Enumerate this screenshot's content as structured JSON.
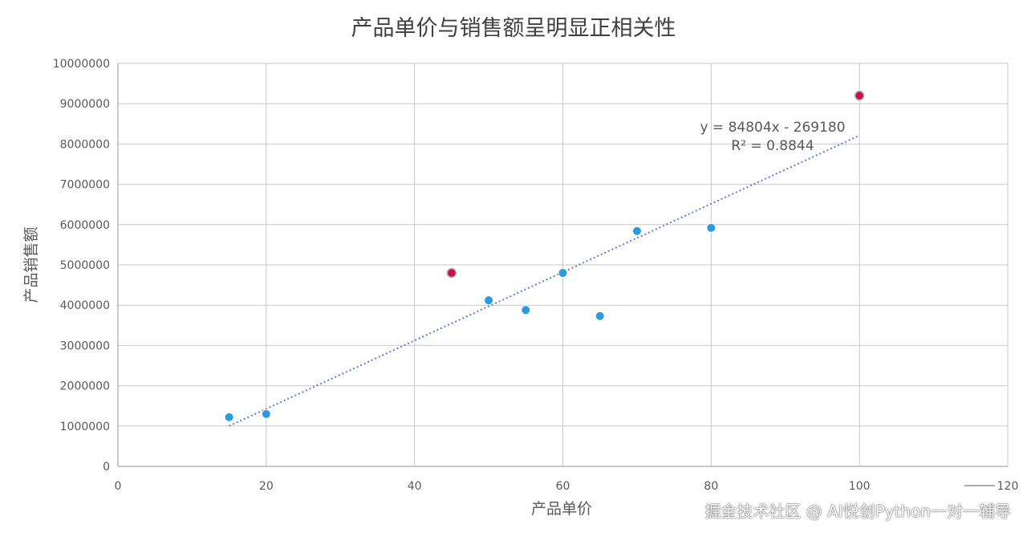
{
  "chart_data": {
    "type": "scatter",
    "title": "产品单价与销售额呈明显正相关性",
    "xlabel": "产品单价",
    "ylabel": "产品销售额",
    "xlim": [
      0,
      120
    ],
    "ylim": [
      0,
      10000000
    ],
    "x_ticks": [
      0,
      20,
      40,
      60,
      80,
      100,
      120
    ],
    "y_ticks": [
      0,
      1000000,
      2000000,
      3000000,
      4000000,
      5000000,
      6000000,
      7000000,
      8000000,
      9000000,
      10000000
    ],
    "grid": true,
    "points": [
      {
        "x": 15,
        "y": 1220000,
        "highlight": false
      },
      {
        "x": 20,
        "y": 1300000,
        "highlight": false
      },
      {
        "x": 45,
        "y": 4800000,
        "highlight": true
      },
      {
        "x": 50,
        "y": 4120000,
        "highlight": false
      },
      {
        "x": 55,
        "y": 3880000,
        "highlight": false
      },
      {
        "x": 60,
        "y": 4800000,
        "highlight": false
      },
      {
        "x": 65,
        "y": 3730000,
        "highlight": false
      },
      {
        "x": 70,
        "y": 5840000,
        "highlight": false
      },
      {
        "x": 80,
        "y": 5920000,
        "highlight": false
      },
      {
        "x": 100,
        "y": 9200000,
        "highlight": true
      }
    ],
    "trendline": {
      "type": "linear",
      "slope": 84804,
      "intercept": -269180,
      "x_range": [
        15,
        100
      ],
      "equation_label": "y = 84804x - 269180",
      "r2_label": "R² = 0.8844"
    },
    "colors": {
      "point": "#2b9be0",
      "point_highlight": "#d0103a",
      "trendline": "#5b7fd4",
      "grid": "#c8c8c8",
      "text": "#595959",
      "title": "#404040"
    }
  },
  "watermark": {
    "text": "掘金技术社区 @ AI悦创Python一对一辅导"
  }
}
